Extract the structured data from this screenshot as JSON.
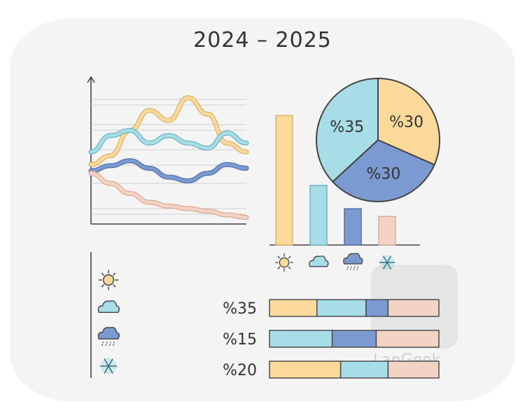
{
  "title": "2024 – 2025",
  "watermark_text": "LanGeek",
  "palette": {
    "yellow": "#fad99a",
    "yellow_stroke": "#d9b56a",
    "sky": "#a7dde6",
    "sky_stroke": "#6fb3c0",
    "blue": "#7c9ad2",
    "blue_stroke": "#5470aa",
    "peach": "#f2d3c4",
    "peach_stroke": "#d9ab96",
    "ink": "#444444"
  },
  "chart_data": [
    {
      "type": "line",
      "title": "",
      "xlabel": "",
      "ylabel": "",
      "grid": true,
      "x": [
        0,
        1,
        2,
        3,
        4,
        5,
        6,
        7,
        8
      ],
      "ylim": [
        0,
        100
      ],
      "series": [
        {
          "color": "#fad99a",
          "values": [
            45,
            52,
            72,
            88,
            80,
            98,
            85,
            62,
            55
          ]
        },
        {
          "color": "#a7dde6",
          "values": [
            55,
            68,
            72,
            62,
            68,
            62,
            58,
            70,
            62
          ]
        },
        {
          "color": "#7c9ad2",
          "values": [
            40,
            44,
            48,
            42,
            35,
            32,
            38,
            45,
            42
          ]
        },
        {
          "color": "#f2d3c4",
          "values": [
            38,
            30,
            22,
            15,
            12,
            10,
            8,
            5,
            3
          ]
        }
      ]
    },
    {
      "type": "bar",
      "title": "",
      "categories": [
        "sun-icon",
        "cloud-icon",
        "rain-icon",
        "snow-icon"
      ],
      "values": [
        100,
        46,
        28,
        22
      ],
      "ylim": [
        0,
        100
      ],
      "colors": [
        "#fad99a",
        "#a7dde6",
        "#7c9ad2",
        "#f2d3c4"
      ]
    },
    {
      "type": "pie",
      "title": "",
      "slices": [
        {
          "label": "%30",
          "value": 30,
          "color": "#fad99a"
        },
        {
          "label": "%30",
          "value": 30,
          "color": "#7c9ad2"
        },
        {
          "label": "%35",
          "value": 35,
          "color": "#a7dde6"
        }
      ]
    },
    {
      "type": "bar",
      "orientation": "horizontal",
      "stacked": true,
      "title": "",
      "legend": [
        {
          "icon": "sun-icon"
        },
        {
          "icon": "cloud-icon"
        },
        {
          "icon": "rain-icon"
        },
        {
          "icon": "snow-icon"
        }
      ],
      "rows": [
        {
          "label": "%35",
          "segments": [
            {
              "color": "#fad99a",
              "value": 28
            },
            {
              "color": "#a7dde6",
              "value": 29
            },
            {
              "color": "#7c9ad2",
              "value": 13
            },
            {
              "color": "#f2d3c4",
              "value": 30
            }
          ]
        },
        {
          "label": "%15",
          "segments": [
            {
              "color": "#a7dde6",
              "value": 37
            },
            {
              "color": "#7c9ad2",
              "value": 26
            },
            {
              "color": "#f2d3c4",
              "value": 37
            }
          ]
        },
        {
          "label": "%20",
          "segments": [
            {
              "color": "#fad99a",
              "value": 42
            },
            {
              "color": "#a7dde6",
              "value": 28
            },
            {
              "color": "#f2d3c4",
              "value": 30
            }
          ]
        }
      ]
    }
  ]
}
